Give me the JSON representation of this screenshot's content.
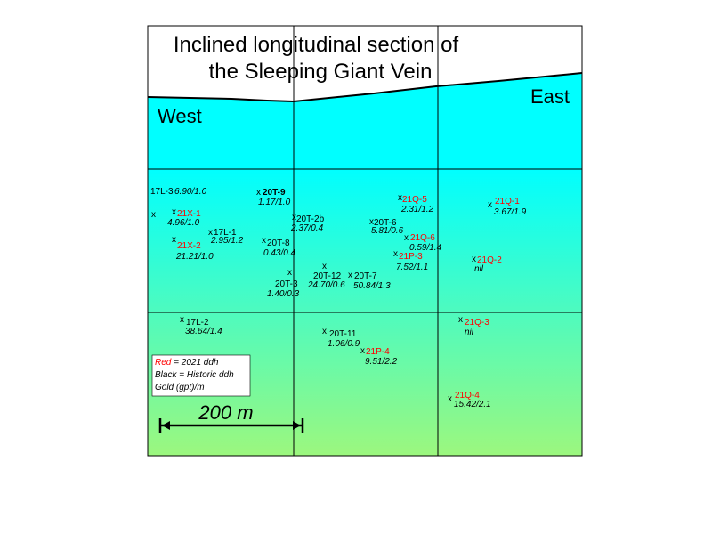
{
  "title": {
    "line1": "Inclined longitudinal section of",
    "line2": "the Sleeping Giant Vein"
  },
  "directions": {
    "west": "West",
    "east": "East"
  },
  "colors": {
    "red": "#ff0000",
    "black": "#000000",
    "gradient_top": "#00ffff",
    "gradient_bottom": "#9cf77e"
  },
  "legend": {
    "red_word": "Red",
    "red_rest": " = 2021 ddh",
    "black_line": "Black = Historic ddh",
    "gold_line": "Gold (gpt)/m"
  },
  "scale_bar": {
    "label": "200 m"
  },
  "drill_holes": [
    {
      "id": "17L-3",
      "value": "6.90/1.0",
      "year": "historic"
    },
    {
      "id": "20T-9",
      "value": "1.17/1.0",
      "year": "historic"
    },
    {
      "id": "21Q-5",
      "value": "2.31/1.2",
      "year": "2021"
    },
    {
      "id": "21Q-1",
      "value": "3.67/1.9",
      "year": "2021"
    },
    {
      "id": "21X-1",
      "value": "4.96/1.0",
      "year": "2021"
    },
    {
      "id": "20T-2b",
      "value": "2.37/0.4",
      "year": "historic"
    },
    {
      "id": "20T-6",
      "value": "5.81/0.6",
      "year": "historic"
    },
    {
      "id": "17L-1",
      "value": "2.95/1.2",
      "year": "historic"
    },
    {
      "id": "21Q-6",
      "value": "0.59/1.4",
      "year": "2021"
    },
    {
      "id": "21X-2",
      "value": "21.21/1.0",
      "year": "2021"
    },
    {
      "id": "20T-8",
      "value": "0.43/0.4",
      "year": "historic"
    },
    {
      "id": "21P-3",
      "value": "7.52/1.1",
      "year": "2021"
    },
    {
      "id": "21Q-2",
      "value": "nil",
      "year": "2021"
    },
    {
      "id": "20T-12",
      "value": "24.70/0.6",
      "year": "historic"
    },
    {
      "id": "20T-7",
      "value": "50.84/1.3",
      "year": "historic"
    },
    {
      "id": "20T-3",
      "value": "1.40/0.3",
      "year": "historic"
    },
    {
      "id": "17L-2",
      "value": "38.64/1.4",
      "year": "historic"
    },
    {
      "id": "21Q-3",
      "value": "nil",
      "year": "2021"
    },
    {
      "id": "20T-11",
      "value": "1.06/0.9",
      "year": "historic"
    },
    {
      "id": "21P-4",
      "value": "9.51/2.2",
      "year": "2021"
    },
    {
      "id": "21Q-4",
      "value": "15.42/2.1",
      "year": "2021"
    }
  ]
}
